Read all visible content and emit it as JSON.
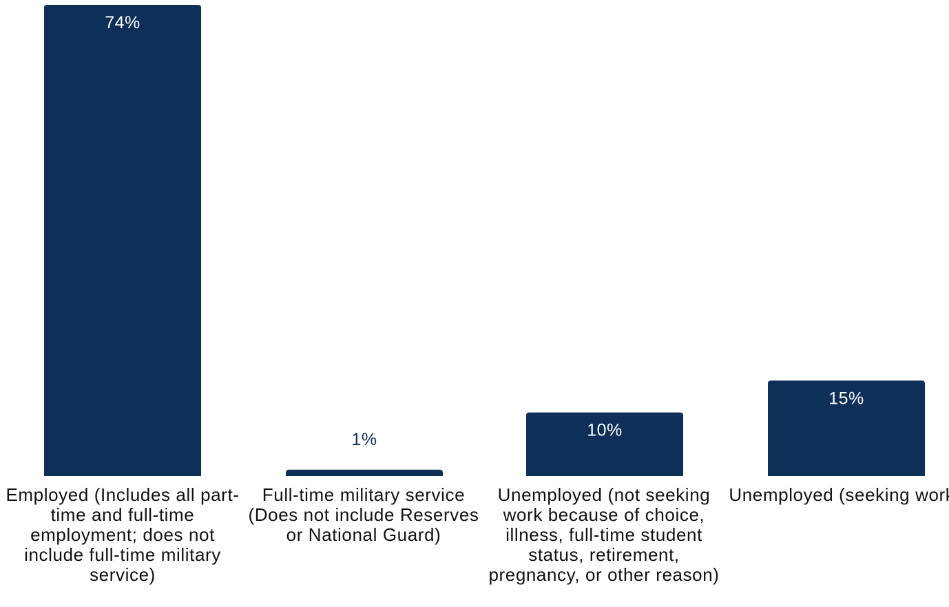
{
  "chart_data": {
    "type": "bar",
    "categories": [
      "Employed (Includes all part-time and full-time employment; does not include full-time military service)",
      "Full-time military service (Does not include Reserves or National Guard)",
      "Unemployed (not seeking work because of choice, illness, full-time student status, retirement, pregnancy, or other reason)",
      "Unemployed (seeking work)"
    ],
    "values": [
      74,
      1,
      10,
      15
    ],
    "value_labels": [
      "74%",
      "1%",
      "10%",
      "15%"
    ],
    "title": "",
    "xlabel": "",
    "ylabel": "",
    "ylim": [
      0,
      74
    ],
    "grid": false,
    "legend": "none"
  },
  "colors": {
    "bar": "#0e2f57",
    "label_on_bar": "#ffffff",
    "label_above_bar": "#0e2f57",
    "text": "#111111"
  }
}
